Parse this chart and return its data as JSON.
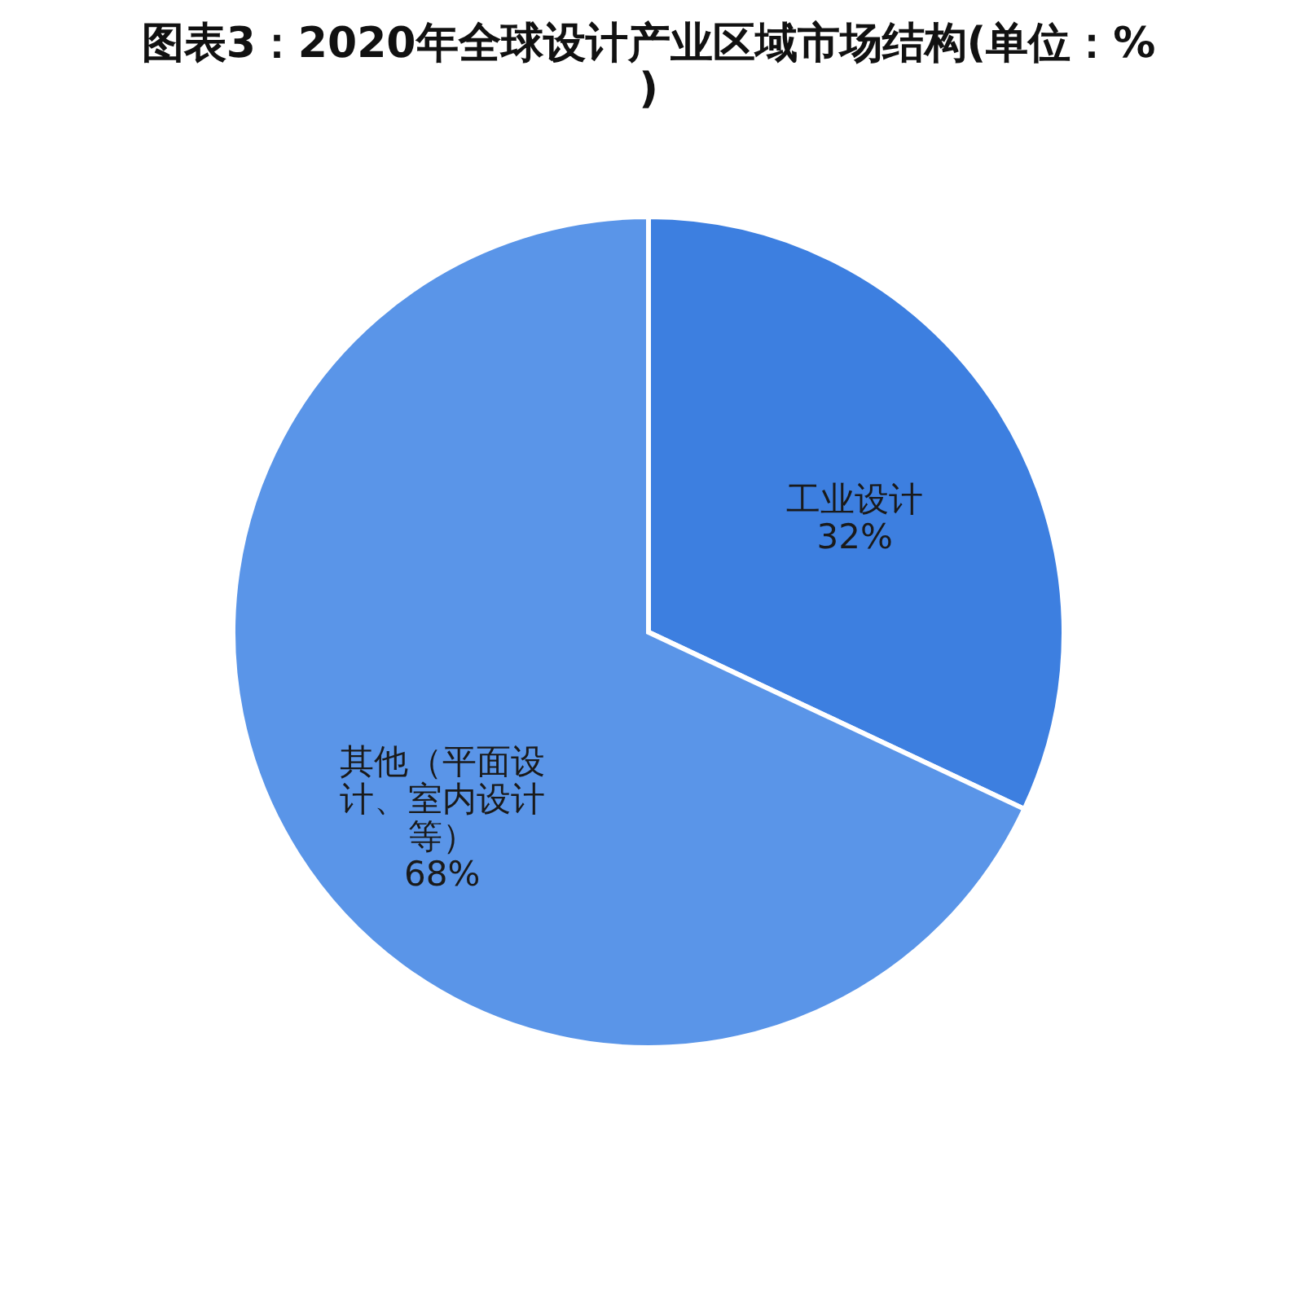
{
  "chart_data": {
    "type": "pie",
    "title": "图表3：2020年全球设计产业区域市场结构(单位：%)",
    "categories": [
      "工业设计",
      "其他（平面设计、室内设计等）"
    ],
    "values": [
      32,
      68
    ],
    "value_labels": [
      "32%",
      "68%"
    ],
    "colors": [
      "#3d7fe0",
      "#5a95e8"
    ],
    "legend": false
  }
}
